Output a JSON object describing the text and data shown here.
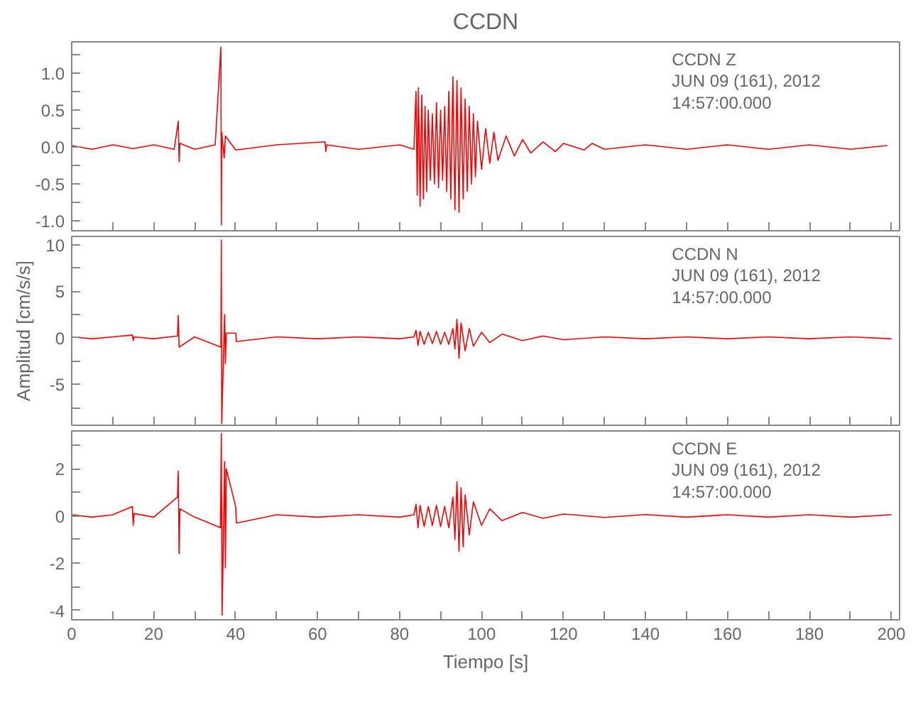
{
  "chart_data": [
    {
      "type": "line",
      "title": "CCDN",
      "color": "#ff0000",
      "tick_labels": "y",
      "annotations": [
        "CCDN   Z",
        "JUN 09 (161), 2012",
        "14:57:00.000"
      ],
      "xlim": [
        0,
        202
      ],
      "xticks": [
        0,
        {
          "value": 10,
          "label": null
        },
        20,
        {
          "value": 30,
          "label": null
        },
        40,
        {
          "value": 50,
          "label": null
        },
        60,
        {
          "value": 70,
          "label": null
        },
        80,
        {
          "value": 90,
          "label": null
        },
        100,
        {
          "value": 110,
          "label": null
        },
        120,
        {
          "value": 130,
          "label": null
        },
        140,
        {
          "value": 150,
          "label": null
        },
        160,
        {
          "value": 170,
          "label": null
        },
        180,
        {
          "value": 190,
          "label": null
        },
        200
      ],
      "ylim": [
        -1.13,
        1.42
      ],
      "yticks": [
        {
          "value": -1,
          "label": "-1.0"
        },
        {
          "value": -0.75,
          "label": null
        },
        -0.5,
        {
          "value": -0.25,
          "label": null
        },
        {
          "value": 0,
          "label": "0.0"
        },
        {
          "value": 0.25,
          "label": null
        },
        0.5,
        {
          "value": 0.75,
          "label": null
        },
        {
          "value": 1,
          "label": "1.0"
        },
        {
          "value": 1.25,
          "label": null
        }
      ],
      "x": [
        0,
        5,
        10,
        15,
        20,
        25,
        26,
        26.2,
        26.4,
        30,
        35,
        36.4,
        36.5,
        36.6,
        37.2,
        37.5,
        40,
        50,
        61.8,
        62,
        62.2,
        70,
        80,
        83.5,
        84,
        84.3,
        84.6,
        85,
        85.4,
        85.8,
        86.2,
        86.6,
        87,
        87.5,
        88,
        88.5,
        89,
        89.5,
        90,
        90.5,
        91,
        91.5,
        92,
        92.5,
        93,
        93.5,
        94,
        94.5,
        95,
        95.5,
        96,
        96.5,
        97,
        97.5,
        98,
        98.5,
        99,
        100,
        101,
        102,
        103,
        104,
        106,
        108,
        110,
        112,
        115,
        118,
        120,
        125,
        127,
        130,
        140,
        150,
        160,
        170,
        180,
        190,
        199
      ],
      "values": [
        0.02,
        -0.03,
        0.03,
        -0.02,
        0.03,
        -0.03,
        0.35,
        -0.2,
        0.05,
        -0.03,
        0.03,
        1.35,
        -1.05,
        0.2,
        -0.15,
        0.15,
        -0.04,
        0.03,
        0.07,
        -0.06,
        0.03,
        -0.03,
        0.03,
        -0.03,
        0.75,
        -0.65,
        0.8,
        -0.8,
        0.7,
        -0.7,
        0.55,
        -0.6,
        0.5,
        -0.45,
        0.45,
        -0.5,
        0.6,
        -0.55,
        0.5,
        -0.45,
        0.55,
        -0.6,
        0.75,
        -0.7,
        0.95,
        -0.85,
        0.9,
        -0.88,
        0.8,
        -0.7,
        0.65,
        -0.6,
        0.55,
        -0.5,
        0.45,
        -0.4,
        0.35,
        -0.3,
        0.25,
        -0.22,
        0.2,
        -0.18,
        0.15,
        -0.12,
        0.1,
        -0.08,
        0.07,
        -0.06,
        0.05,
        -0.04,
        0.05,
        -0.03,
        0.03,
        -0.03,
        0.03,
        -0.03,
        0.03,
        -0.03,
        0.02
      ]
    },
    {
      "type": "line",
      "ylabel": "Amplitud [cm/s/s]",
      "color": "#ff0000",
      "tick_labels": "y",
      "annotations": [
        "CCDN   N",
        "JUN 09 (161), 2012",
        "14:57:00.000"
      ],
      "xlim": [
        0,
        202
      ],
      "xticks": [
        0,
        {
          "value": 10,
          "label": null
        },
        20,
        {
          "value": 30,
          "label": null
        },
        40,
        {
          "value": 50,
          "label": null
        },
        60,
        {
          "value": 70,
          "label": null
        },
        80,
        {
          "value": 90,
          "label": null
        },
        100,
        {
          "value": 110,
          "label": null
        },
        120,
        {
          "value": 130,
          "label": null
        },
        140,
        {
          "value": 150,
          "label": null
        },
        160,
        {
          "value": 170,
          "label": null
        },
        180,
        {
          "value": 190,
          "label": null
        },
        200
      ],
      "ylim": [
        -9.4,
        10.9
      ],
      "yticks": [
        {
          "value": -7.5,
          "label": null
        },
        -5,
        {
          "value": -2.5,
          "label": null
        },
        0,
        {
          "value": 2.5,
          "label": null
        },
        5,
        {
          "value": 7.5,
          "label": null
        },
        10
      ],
      "x": [
        0,
        5,
        10,
        14.8,
        15,
        15.2,
        20,
        25.8,
        26,
        26.2,
        30,
        36.4,
        36.5,
        36.6,
        37.3,
        37.5,
        37.7,
        40,
        40.2,
        50,
        60,
        70,
        80,
        83.5,
        84,
        84.5,
        85,
        86,
        87,
        88,
        89,
        90,
        91,
        92,
        93,
        93.5,
        94,
        94.5,
        95,
        96,
        97,
        98,
        100,
        102,
        105,
        110,
        115,
        120,
        130,
        140,
        150,
        160,
        170,
        180,
        190,
        200
      ],
      "values": [
        0.1,
        -0.1,
        0.1,
        0.3,
        -0.3,
        0.1,
        -0.1,
        0.2,
        2.4,
        -1.0,
        0.1,
        -1.0,
        10.5,
        -9.2,
        2.5,
        -2.8,
        0.5,
        0.5,
        -0.4,
        0.1,
        -0.1,
        0.1,
        -0.1,
        0.1,
        0.8,
        -0.8,
        0.7,
        -0.7,
        0.6,
        -0.6,
        0.7,
        -0.7,
        0.6,
        -0.7,
        1.0,
        -1.2,
        2.0,
        -2.2,
        1.6,
        -1.4,
        1.0,
        -0.9,
        0.6,
        -0.5,
        0.4,
        -0.3,
        0.2,
        -0.2,
        0.1,
        -0.1,
        0.1,
        -0.1,
        0.1,
        -0.1,
        0.1,
        -0.1
      ]
    },
    {
      "type": "line",
      "xlabel": "Tiempo [s]",
      "color": "#ff0000",
      "annotations": [
        "CCDN   E",
        "JUN 09 (161), 2012",
        "14:57:00.000"
      ],
      "xlim": [
        0,
        202
      ],
      "xticks": [
        0,
        {
          "value": 10,
          "label": null
        },
        20,
        {
          "value": 30,
          "label": null
        },
        40,
        {
          "value": 50,
          "label": null
        },
        60,
        {
          "value": 70,
          "label": null
        },
        80,
        {
          "value": 90,
          "label": null
        },
        100,
        {
          "value": 110,
          "label": null
        },
        120,
        {
          "value": 130,
          "label": null
        },
        140,
        {
          "value": 150,
          "label": null
        },
        160,
        {
          "value": 170,
          "label": null
        },
        180,
        {
          "value": 190,
          "label": null
        },
        200
      ],
      "ylim": [
        -4.4,
        3.6
      ],
      "yticks": [
        -4,
        {
          "value": -3,
          "label": null
        },
        -2,
        {
          "value": -1,
          "label": null
        },
        0,
        {
          "value": 1,
          "label": null
        },
        2,
        {
          "value": 3,
          "label": null
        }
      ],
      "x": [
        0,
        5,
        10,
        14.8,
        15,
        15.2,
        20,
        25.8,
        26,
        26.2,
        26.4,
        30,
        36.3,
        36.5,
        36.7,
        37.3,
        37.5,
        37.7,
        40,
        40.2,
        50,
        60,
        70,
        80,
        83.5,
        84,
        84.5,
        85,
        86,
        87,
        88,
        89,
        90,
        91,
        92,
        93,
        93.5,
        94,
        94.5,
        95,
        95.5,
        96,
        97,
        98,
        100,
        102,
        105,
        110,
        115,
        120,
        130,
        140,
        150,
        160,
        170,
        180,
        190,
        200
      ],
      "values": [
        0.05,
        -0.05,
        0.05,
        0.4,
        -0.4,
        0.1,
        -0.05,
        0.8,
        1.9,
        -1.6,
        0.3,
        -0.05,
        -0.5,
        3.5,
        -4.2,
        2.3,
        -2.2,
        2.0,
        0.4,
        -0.3,
        0.05,
        -0.05,
        0.05,
        -0.05,
        0.05,
        0.5,
        -0.5,
        0.45,
        -0.45,
        0.4,
        -0.4,
        0.45,
        -0.45,
        0.4,
        -0.5,
        0.8,
        -1.0,
        1.45,
        -1.5,
        1.2,
        -1.3,
        0.9,
        -0.8,
        0.6,
        -0.4,
        0.3,
        -0.2,
        0.15,
        -0.1,
        0.08,
        -0.06,
        0.06,
        -0.05,
        0.05,
        -0.05,
        0.05,
        -0.05,
        0.05
      ]
    }
  ]
}
